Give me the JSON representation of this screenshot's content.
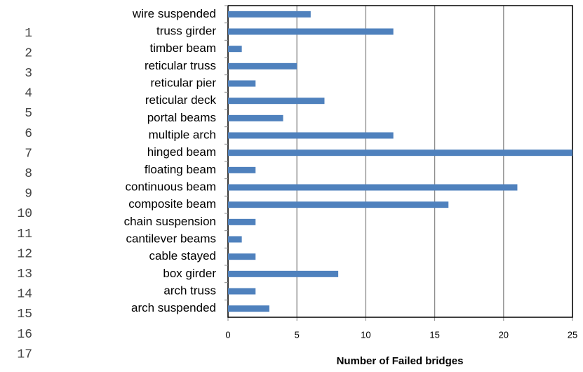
{
  "line_numbers": [
    "1",
    "2",
    "3",
    "4",
    "5",
    "6",
    "7",
    "8",
    "9",
    "10",
    "11",
    "12",
    "13",
    "14",
    "15",
    "16",
    "17"
  ],
  "chart_data": {
    "type": "barh",
    "x_label": "Number of Failed bridges",
    "categories": [
      "wire suspended",
      "truss girder",
      "timber beam",
      "reticular truss",
      "reticular pier",
      "reticular deck",
      "portal beams",
      "multiple arch",
      "hinged beam",
      "floating beam",
      "continuous beam",
      "composite beam",
      "chain suspension",
      "cantilever beams",
      "cable stayed",
      "box girder",
      "arch truss",
      "arch suspended"
    ],
    "values": [
      6,
      12,
      1,
      5,
      2,
      7,
      4,
      12,
      25,
      2,
      21,
      16,
      2,
      1,
      2,
      8,
      2,
      3
    ],
    "color": "#4f81bd",
    "xlim": [
      0,
      25
    ],
    "xticks": [
      0,
      5,
      10,
      15,
      20,
      25
    ],
    "grid": true
  }
}
